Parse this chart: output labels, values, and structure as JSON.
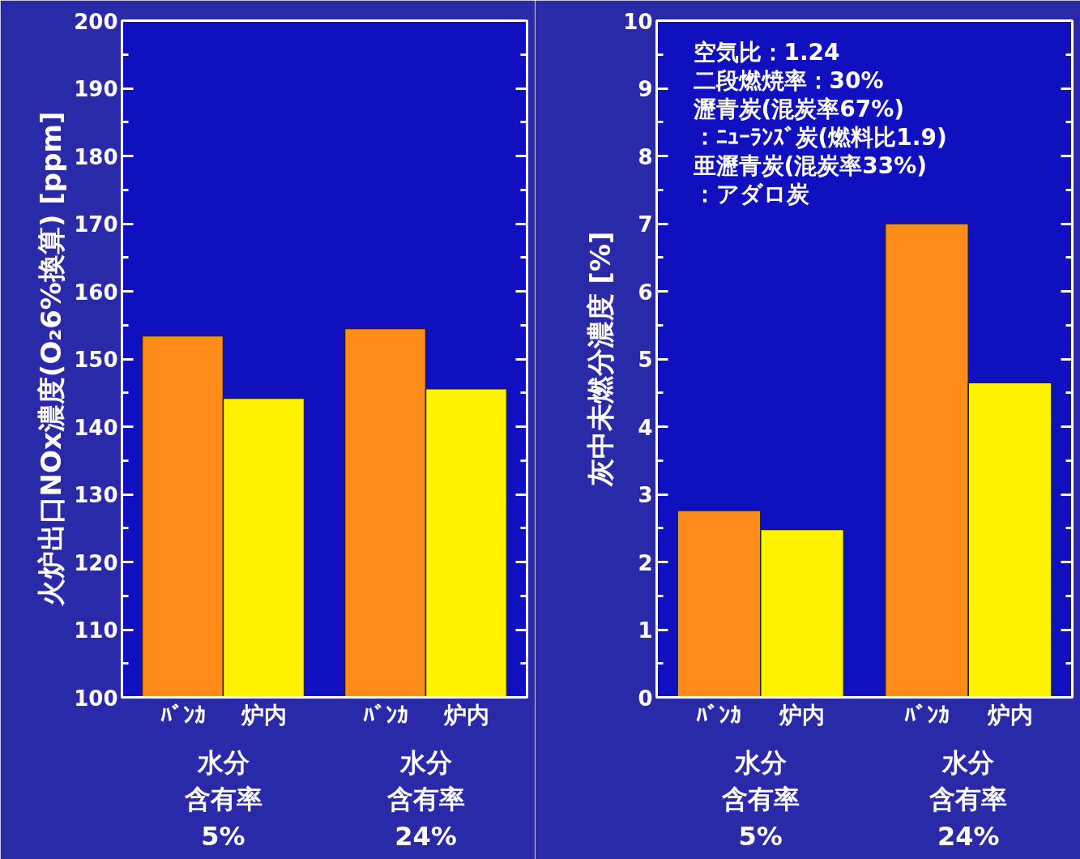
{
  "chart_data": [
    {
      "type": "bar",
      "ylabel": "火炉出口NOx濃度(O₂6%換算) [ppm]",
      "categories": [
        "水分含有率5%",
        "水分含有率24%"
      ],
      "series": [
        {
          "name": "ﾊﾞﾝｶ",
          "color": "#ff8c1a",
          "values": [
            153.4,
            154.5
          ]
        },
        {
          "name": "炉内",
          "color": "#fff200",
          "values": [
            144.2,
            145.6
          ]
        }
      ],
      "ylim": [
        100,
        200
      ],
      "yticks": [
        100,
        110,
        120,
        130,
        140,
        150,
        160,
        170,
        180,
        190,
        200
      ],
      "grid": false,
      "legend": false
    },
    {
      "type": "bar",
      "ylabel": "灰中未燃分濃度 [%]",
      "categories": [
        "水分含有率5%",
        "水分含有率24%"
      ],
      "series": [
        {
          "name": "ﾊﾞﾝｶ",
          "color": "#ff8c1a",
          "values": [
            2.76,
            7.0
          ]
        },
        {
          "name": "炉内",
          "color": "#fff200",
          "values": [
            2.48,
            4.65
          ]
        }
      ],
      "ylim": [
        0,
        10
      ],
      "yticks": [
        0,
        1,
        2,
        3,
        4,
        5,
        6,
        7,
        8,
        9,
        10
      ],
      "grid": false,
      "legend": false,
      "annotations": [
        "空気比：1.24",
        "二段燃焼率：30%",
        "瀝青炭(混炭率67%)",
        "：ﾆｭｰﾗﾝｽﾞ炭(燃料比1.9)",
        "亜瀝青炭(混炭率33%)",
        "：アダロ炭"
      ]
    }
  ]
}
